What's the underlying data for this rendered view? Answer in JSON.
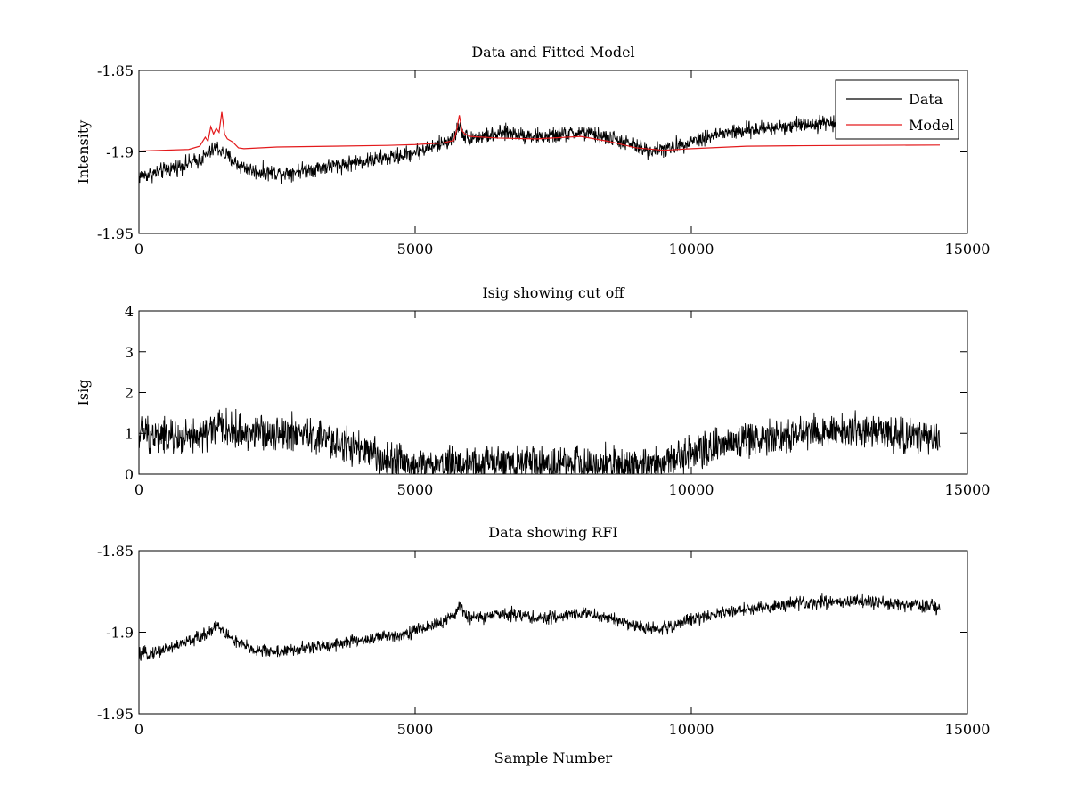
{
  "chart_data": [
    {
      "type": "line",
      "title": "Data and Fitted Model",
      "xlabel": "",
      "ylabel": "Intensity",
      "xlim": [
        0,
        15000
      ],
      "ylim": [
        -1.95,
        -1.85
      ],
      "xticks": [
        0,
        5000,
        10000,
        15000
      ],
      "xtick_labels": [
        "0",
        "5000",
        "10000",
        "15000"
      ],
      "yticks": [
        -1.85,
        -1.9,
        -1.95
      ],
      "ytick_labels": [
        "-1.85",
        "-1.9",
        "-1.95"
      ],
      "legend_position": "top-right",
      "series": [
        {
          "name": "Data",
          "color": "#000000",
          "kind": "noisy",
          "noise": 0.0035,
          "x": [
            0,
            300,
            700,
            1100,
            1300,
            1400,
            1500,
            1800,
            2100,
            2600,
            3200,
            4000,
            4800,
            5300,
            5700,
            5800,
            5900,
            6200,
            6700,
            7300,
            8000,
            8600,
            9200,
            9600,
            10000,
            10500,
            11000,
            11500,
            12000,
            12600,
            13000,
            13600,
            14300,
            14500
          ],
          "values": [
            -1.915,
            -1.913,
            -1.909,
            -1.905,
            -1.9,
            -1.897,
            -1.9,
            -1.908,
            -1.912,
            -1.913,
            -1.91,
            -1.906,
            -1.902,
            -1.897,
            -1.892,
            -1.883,
            -1.891,
            -1.891,
            -1.888,
            -1.891,
            -1.888,
            -1.892,
            -1.899,
            -1.898,
            -1.893,
            -1.889,
            -1.887,
            -1.885,
            -1.883,
            -1.882,
            -1.882,
            -1.884,
            -1.886,
            -1.887
          ]
        },
        {
          "name": "Model",
          "color": "#e31a1c",
          "kind": "smooth",
          "x": [
            0,
            900,
            1100,
            1200,
            1250,
            1300,
            1350,
            1400,
            1450,
            1500,
            1550,
            1600,
            1700,
            1800,
            1900,
            2500,
            3500,
            4500,
            5000,
            5500,
            5700,
            5750,
            5800,
            5850,
            5900,
            6000,
            6500,
            7200,
            8000,
            8500,
            9000,
            9500,
            10000,
            11000,
            12000,
            13000,
            14500
          ],
          "values": [
            -1.8995,
            -1.8985,
            -1.8965,
            -1.891,
            -1.8935,
            -1.8845,
            -1.889,
            -1.8855,
            -1.888,
            -1.8755,
            -1.889,
            -1.892,
            -1.894,
            -1.8975,
            -1.898,
            -1.897,
            -1.8965,
            -1.896,
            -1.8955,
            -1.8945,
            -1.893,
            -1.887,
            -1.8775,
            -1.887,
            -1.889,
            -1.8905,
            -1.8915,
            -1.892,
            -1.8905,
            -1.8935,
            -1.8975,
            -1.899,
            -1.898,
            -1.8965,
            -1.8962,
            -1.896,
            -1.8958
          ]
        }
      ]
    },
    {
      "type": "line",
      "title": "Isig showing cut off",
      "xlabel": "",
      "ylabel": "Isig",
      "xlim": [
        0,
        15000
      ],
      "ylim": [
        0,
        4
      ],
      "xticks": [
        0,
        5000,
        10000,
        15000
      ],
      "xtick_labels": [
        "0",
        "5000",
        "10000",
        "15000"
      ],
      "yticks": [
        0,
        1,
        2,
        3,
        4
      ],
      "ytick_labels": [
        "0",
        "1",
        "2",
        "3",
        "4"
      ],
      "series": [
        {
          "name": "Isig",
          "color": "#000000",
          "kind": "noisy",
          "noise": 0.35,
          "floor": 0,
          "x": [
            0,
            500,
            1000,
            1400,
            2000,
            2700,
            3300,
            3800,
            4200,
            4600,
            5000,
            5500,
            6000,
            6700,
            7500,
            8300,
            9000,
            9500,
            9800,
            10200,
            10800,
            11500,
            12200,
            12800,
            13400,
            14000,
            14500
          ],
          "values": [
            1.0,
            0.9,
            0.85,
            1.15,
            1.0,
            1.05,
            0.85,
            0.7,
            0.45,
            0.3,
            0.22,
            0.2,
            0.25,
            0.28,
            0.2,
            0.25,
            0.22,
            0.3,
            0.45,
            0.65,
            0.8,
            0.95,
            1.05,
            1.1,
            1.0,
            0.9,
            0.85
          ]
        }
      ]
    },
    {
      "type": "line",
      "title": "Data showing RFI",
      "xlabel": "Sample Number",
      "ylabel": "",
      "xlim": [
        0,
        15000
      ],
      "ylim": [
        -1.95,
        -1.85
      ],
      "xticks": [
        0,
        5000,
        10000,
        15000
      ],
      "xtick_labels": [
        "0",
        "5000",
        "10000",
        "15000"
      ],
      "yticks": [
        -1.85,
        -1.9,
        -1.95
      ],
      "ytick_labels": [
        "-1.85",
        "-1.9",
        "-1.95"
      ],
      "series": [
        {
          "name": "Data",
          "color": "#000000",
          "kind": "noisy",
          "noise": 0.0028,
          "x": [
            0,
            300,
            700,
            1100,
            1300,
            1400,
            1500,
            1800,
            2100,
            2600,
            3200,
            4000,
            4800,
            5300,
            5700,
            5800,
            5900,
            6200,
            6700,
            7300,
            8000,
            8600,
            9200,
            9600,
            10000,
            10500,
            11000,
            11500,
            12000,
            12600,
            13000,
            13600,
            14300,
            14500
          ],
          "values": [
            -1.914,
            -1.912,
            -1.908,
            -1.903,
            -1.899,
            -1.895,
            -1.899,
            -1.907,
            -1.911,
            -1.912,
            -1.909,
            -1.905,
            -1.901,
            -1.896,
            -1.891,
            -1.882,
            -1.89,
            -1.891,
            -1.888,
            -1.892,
            -1.888,
            -1.892,
            -1.898,
            -1.897,
            -1.892,
            -1.888,
            -1.886,
            -1.884,
            -1.882,
            -1.881,
            -1.881,
            -1.883,
            -1.884,
            -1.885
          ]
        }
      ]
    }
  ]
}
